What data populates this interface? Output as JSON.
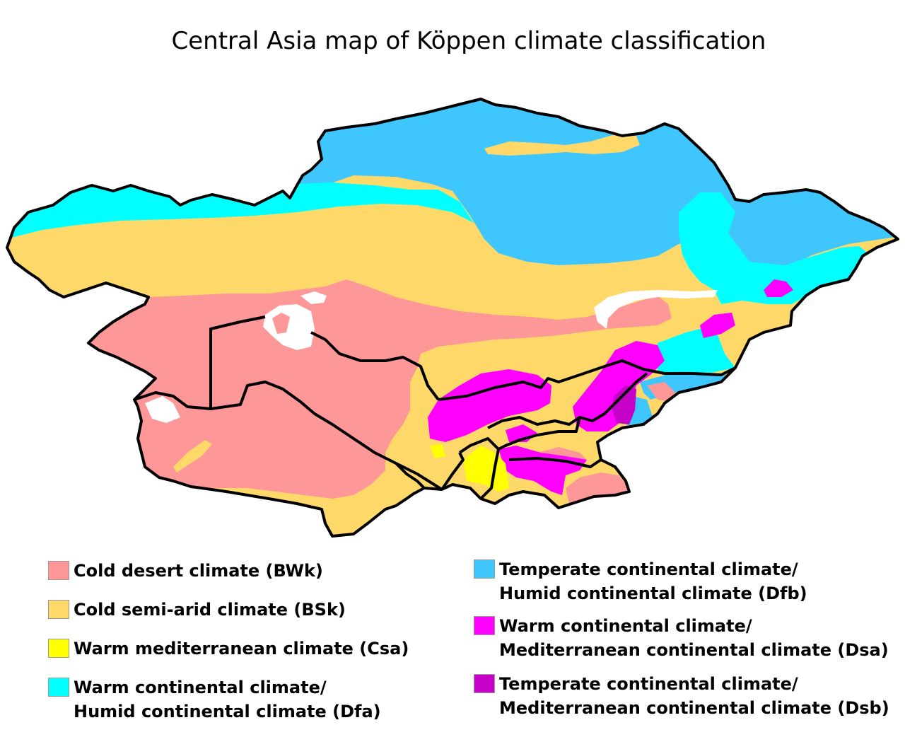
{
  "title": "Central Asia map of Köppen climate classification",
  "colors": {
    "BWk": "#fe9797",
    "BSk": "#fed96a",
    "Csa": "#ffff00",
    "Dfa": "#00ffff",
    "Dfb": "#3fc6fd",
    "Dsa": "#ff00ff",
    "Dsb": "#c600c6",
    "border": "#000000",
    "lake": "#ffffff"
  },
  "legend": [
    {
      "code": "BWk",
      "lines": [
        "Cold desert climate (BWk)"
      ]
    },
    {
      "code": "BSk",
      "lines": [
        "Cold semi-arid climate (BSk)"
      ]
    },
    {
      "code": "Csa",
      "lines": [
        "Warm mediterranean climate (Csa)"
      ]
    },
    {
      "code": "Dfa",
      "lines": [
        "Warm continental climate/",
        "Humid continental climate (Dfa)"
      ]
    },
    {
      "code": "Dfb",
      "lines": [
        "Temperate continental climate/",
        "Humid continental climate (Dfb)"
      ]
    },
    {
      "code": "Dsa",
      "lines": [
        "Warm continental climate/",
        "Mediterranean continental climate (Dsa)"
      ]
    },
    {
      "code": "Dsb",
      "lines": [
        "Temperate continental climate/",
        "Mediterranean continental climate (Dsb)"
      ]
    }
  ]
}
